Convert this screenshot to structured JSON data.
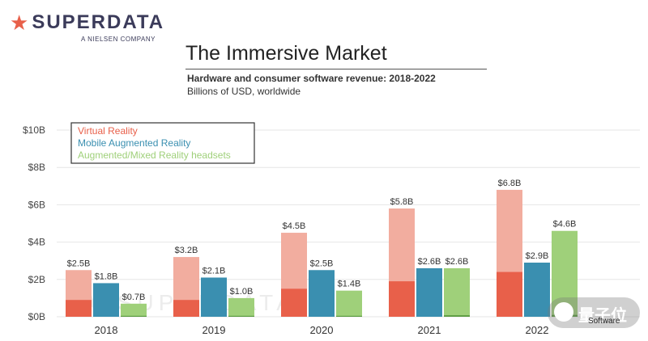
{
  "brand": {
    "name_prefix": "SUPER",
    "name_suffix": "DATA",
    "tagline": "A NIELSEN COMPANY",
    "icon": "star-icon",
    "accent": "#e8604a"
  },
  "watermark": {
    "chars": "量子位",
    "sub": "Software"
  },
  "chart_data": {
    "type": "bar",
    "title": "The Immersive Market",
    "subtitle": "Hardware and consumer software revenue: 2018-2022",
    "unit_label": "Billions of USD, worldwide",
    "categories": [
      "2018",
      "2019",
      "2020",
      "2021",
      "2022"
    ],
    "ylim": [
      0,
      10
    ],
    "yticks": [
      "$0B",
      "$2B",
      "$4B",
      "$6B",
      "$8B",
      "$10B"
    ],
    "grid": true,
    "legend_position": "top-left",
    "series": [
      {
        "name": "Virtual Reality",
        "color": "#e8604a",
        "light_color": "#f2ad9f",
        "values": [
          2.5,
          3.2,
          4.5,
          5.8,
          6.8
        ],
        "labels": [
          "$2.5B",
          "$3.2B",
          "$4.5B",
          "$5.8B",
          "$6.8B"
        ],
        "dark_portion": [
          0.9,
          0.9,
          1.5,
          1.9,
          2.4
        ]
      },
      {
        "name": "Mobile Augmented Reality",
        "color": "#3a8fb0",
        "values": [
          1.8,
          2.1,
          2.5,
          2.6,
          2.9
        ],
        "labels": [
          "$1.8B",
          "$2.1B",
          "$2.5B",
          "$2.6B",
          "$2.9B"
        ]
      },
      {
        "name": "Augmented/Mixed Reality headsets",
        "color": "#9fd07a",
        "values": [
          0.7,
          1.0,
          1.4,
          2.6,
          4.6
        ],
        "labels": [
          "$0.7B",
          "$1.0B",
          "$1.4B",
          "$2.6B",
          "$4.6B"
        ],
        "dark_portion": [
          0.05,
          0.05,
          0.05,
          0.08,
          0.1
        ]
      }
    ]
  }
}
